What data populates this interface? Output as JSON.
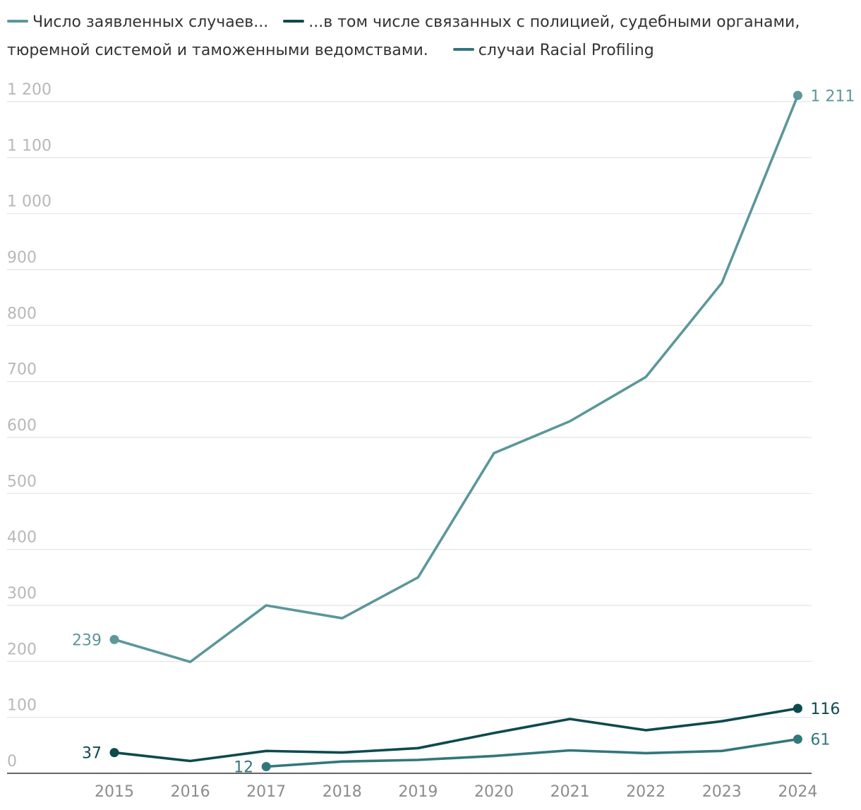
{
  "chart_data": {
    "type": "line",
    "x": [
      "2015",
      "2016",
      "2017",
      "2018",
      "2019",
      "2020",
      "2021",
      "2022",
      "2023",
      "2024"
    ],
    "ylim": [
      0,
      1200
    ],
    "yticks": [
      0,
      100,
      200,
      300,
      400,
      500,
      600,
      700,
      800,
      900,
      1000,
      1100,
      1200
    ],
    "ytick_labels": [
      "0",
      "100",
      "200",
      "300",
      "400",
      "500",
      "600",
      "700",
      "800",
      "900",
      "1 000",
      "1 100",
      "1 200"
    ],
    "grid": true,
    "legend_position": "top-left",
    "series": [
      {
        "name": "Число заявленных случаев...",
        "color": "#5b979b",
        "values": [
          239,
          199,
          300,
          277,
          350,
          572,
          629,
          708,
          876,
          1211
        ]
      },
      {
        "name": "...в том числе связанных с полицией, судебными органами, тюремной системой и таможенными ведомствами.",
        "color": "#0d4a4e",
        "values": [
          37,
          22,
          40,
          37,
          45,
          72,
          97,
          77,
          93,
          116
        ]
      },
      {
        "name": "случаи Racial Profiling",
        "color": "#32777c",
        "values": [
          null,
          null,
          12,
          21,
          24,
          31,
          41,
          36,
          40,
          61
        ]
      }
    ],
    "annotations": [
      {
        "series": 0,
        "point": 0,
        "text": "239",
        "side": "left"
      },
      {
        "series": 0,
        "point": 9,
        "text": "1 211",
        "side": "right"
      },
      {
        "series": 1,
        "point": 0,
        "text": "37",
        "side": "left"
      },
      {
        "series": 1,
        "point": 9,
        "text": "116",
        "side": "right"
      },
      {
        "series": 2,
        "point": 2,
        "text": "12",
        "side": "left"
      },
      {
        "series": 2,
        "point": 9,
        "text": "61",
        "side": "right"
      }
    ]
  }
}
